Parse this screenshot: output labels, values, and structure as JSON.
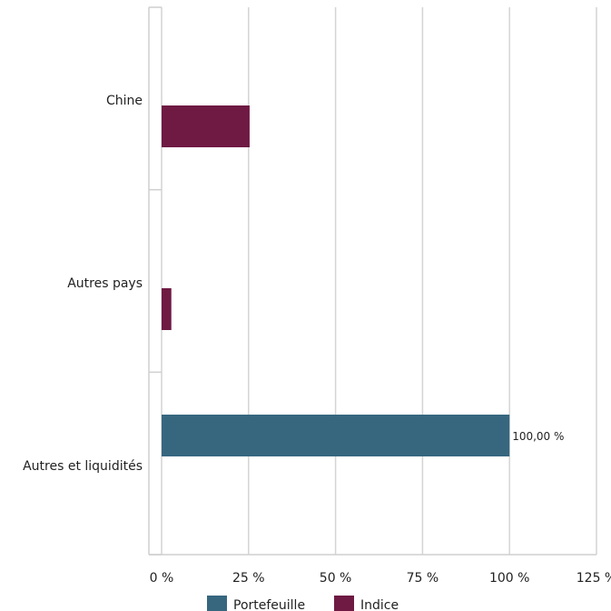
{
  "chart_data": {
    "type": "bar",
    "orientation": "horizontal",
    "categories": [
      "Chine",
      "Autres pays",
      "Autres et liquidités"
    ],
    "series": [
      {
        "name": "Portefeuille",
        "values": [
          0,
          0,
          100
        ],
        "color": "#36677f"
      },
      {
        "name": "Indice",
        "values": [
          25.3,
          2.8,
          0
        ],
        "color": "#6e1a43"
      }
    ],
    "xlim": [
      0,
      125
    ],
    "xticks": [
      0,
      25,
      50,
      75,
      100,
      125
    ],
    "xtick_labels": [
      "0 %",
      "25 %",
      "50 %",
      "75 %",
      "100 %",
      "125 %"
    ],
    "data_labels": [
      {
        "series": "Portefeuille",
        "category": "Autres et liquidités",
        "text": "100,00 %"
      }
    ],
    "grid": "vertical",
    "legend": "bottom"
  }
}
